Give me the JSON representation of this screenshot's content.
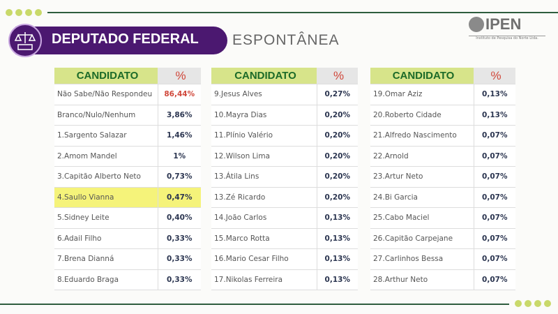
{
  "header": {
    "title": "DEPUTADO FEDERAL",
    "subtitle": "ESPONTÂNEA"
  },
  "logo": {
    "name": "IPEN",
    "tagline": "Instituto de Pesquisa do Norte Ltda."
  },
  "colors": {
    "purple": "#4b1870",
    "header_green": "#d7e48a",
    "highlight": "#f5f37a",
    "accent_red": "#d0473a"
  },
  "columns": {
    "candidate": "CANDIDATO",
    "percent": "%"
  },
  "tables": [
    [
      [
        "Não Sabe/Não Respondeu",
        "86,44%"
      ],
      [
        "Branco/Nulo/Nenhum",
        "3,86%"
      ],
      [
        "1.Sargento Salazar",
        "1,46%"
      ],
      [
        "2.Amom Mandel",
        "1%"
      ],
      [
        "3.Capitão Alberto Neto",
        "0,73%"
      ],
      [
        "4.Saullo Vianna",
        "0,47%"
      ],
      [
        "5.Sidney Leite",
        "0,40%"
      ],
      [
        "6.Adail Filho",
        "0,33%"
      ],
      [
        "7.Brena Dianná",
        "0,33%"
      ],
      [
        "8.Eduardo Braga",
        "0,33%"
      ]
    ],
    [
      [
        "9.Jesus Alves",
        "0,27%"
      ],
      [
        "10.Mayra Dias",
        "0,20%"
      ],
      [
        "11.Plínio Valério",
        "0,20%"
      ],
      [
        "12.Wilson Lima",
        "0,20%"
      ],
      [
        "13.Átila Lins",
        "0,20%"
      ],
      [
        "13.Zé Ricardo",
        "0,20%"
      ],
      [
        "14.João Carlos",
        "0,13%"
      ],
      [
        "15.Marco Rotta",
        "0,13%"
      ],
      [
        "16.Mario Cesar Filho",
        "0,13%"
      ],
      [
        "17.Nikolas Ferreira",
        "0,13%"
      ]
    ],
    [
      [
        "19.Omar Aziz",
        "0,13%"
      ],
      [
        "20.Roberto Cidade",
        "0,13%"
      ],
      [
        "21.Alfredo Nascimento",
        "0,07%"
      ],
      [
        "22.Arnold",
        "0,07%"
      ],
      [
        "23.Artur Neto",
        "0,07%"
      ],
      [
        "24.Bi Garcia",
        "0,07%"
      ],
      [
        "25.Cabo Maciel",
        "0,07%"
      ],
      [
        "26.Capitão Carpejane",
        "0,07%"
      ],
      [
        "27.Carlinhos Bessa",
        "0,07%"
      ],
      [
        "28.Arthur Neto",
        "0,07%"
      ]
    ]
  ],
  "highlighted_row": "4.Saullo Vianna"
}
